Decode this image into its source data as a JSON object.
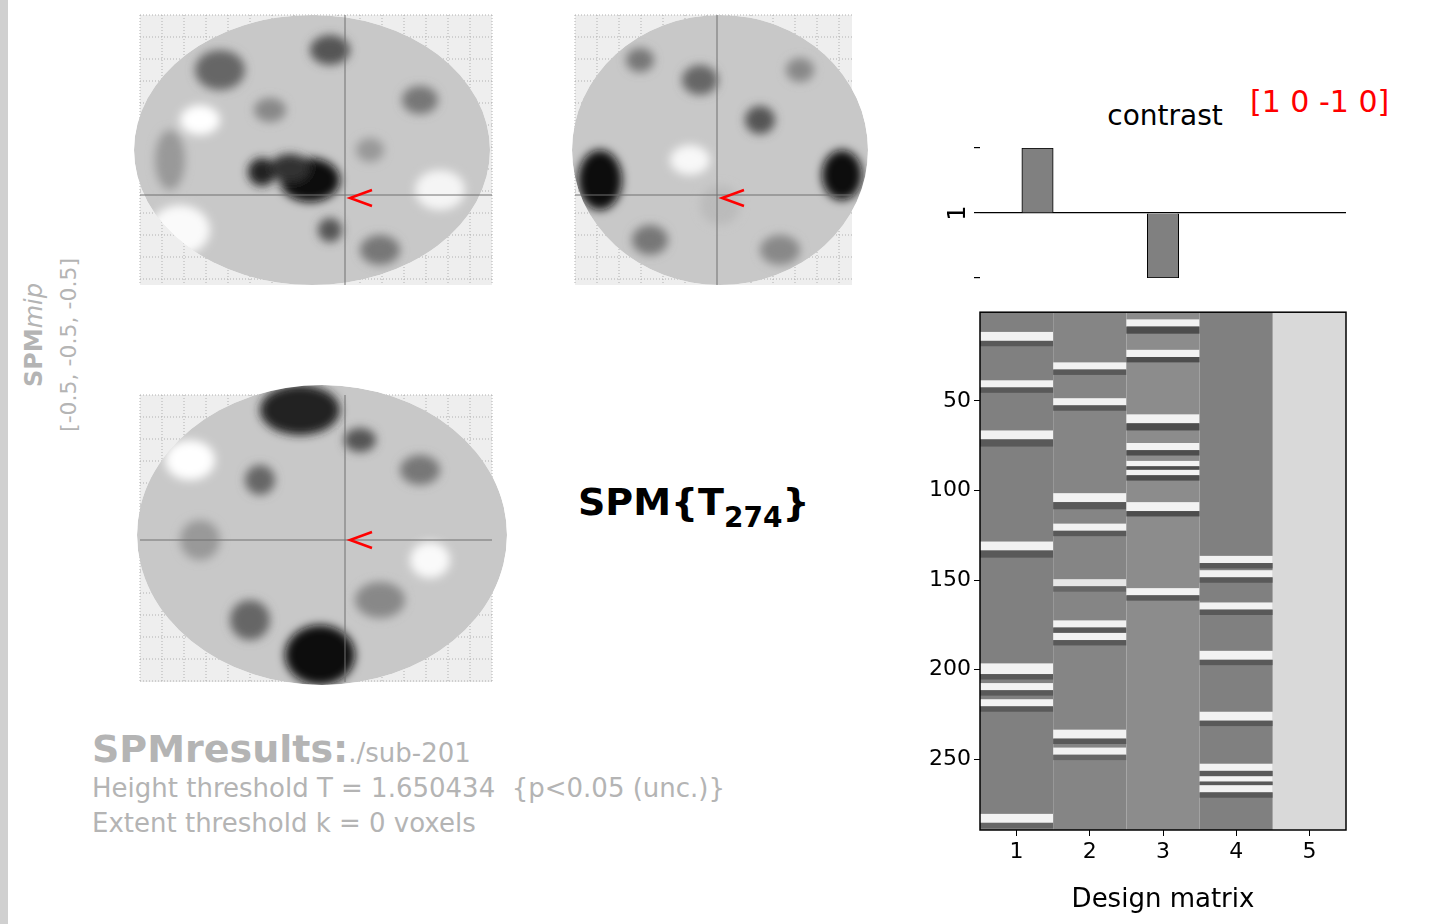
{
  "mip": {
    "label_bold": "SPM",
    "label_italic": "mip",
    "coordinates": "[-0.5, -0.5, -0.5]"
  },
  "stat_label": {
    "text": "SPM{T",
    "subscript": "274",
    "close": "}"
  },
  "results": {
    "title": "SPMresults:",
    "path": "./sub-201",
    "height_threshold": "Height threshold T = 1.650434  {p<0.05 (unc.)}",
    "extent_threshold": "Extent threshold k = 0 voxels"
  },
  "chart_data": [
    {
      "type": "bar",
      "title": "contrast",
      "annotation": "[1 0 -1 0]",
      "ylabel": "1",
      "x": [
        1,
        2,
        3,
        4,
        5
      ],
      "values": [
        1,
        0,
        -1,
        0,
        0
      ],
      "xlim": [
        0.5,
        5.5
      ],
      "ylim": [
        -1,
        1
      ],
      "yticks": [
        -1,
        0,
        1
      ],
      "tick_labels": false,
      "color": "#808080"
    },
    {
      "type": "heatmap",
      "xlabel": "Design matrix",
      "xlim": [
        0.5,
        5.5
      ],
      "xticks": [
        1,
        2,
        3,
        4,
        5
      ],
      "ylim": [
        0.5,
        289.5
      ],
      "yticks": [
        50,
        100,
        150,
        200,
        250
      ],
      "columns": [
        {
          "x": 1,
          "baseline": 0.5,
          "bands": [
            [
              12,
              16,
              0.95
            ],
            [
              17,
              19,
              0.35
            ],
            [
              39,
              42,
              0.95
            ],
            [
              43,
              45,
              0.35
            ],
            [
              67,
              71,
              0.95
            ],
            [
              72,
              75,
              0.35
            ],
            [
              129,
              133,
              0.95
            ],
            [
              134,
              137,
              0.35
            ],
            [
              197,
              202,
              0.95
            ],
            [
              203,
              205,
              0.35
            ],
            [
              208,
              211,
              0.95
            ],
            [
              212,
              214,
              0.35
            ],
            [
              217,
              220,
              0.95
            ],
            [
              221,
              223,
              0.35
            ],
            [
              281,
              285,
              0.95
            ],
            [
              286,
              288,
              0.4
            ]
          ]
        },
        {
          "x": 2,
          "baseline": 0.52,
          "bands": [
            [
              29,
              32,
              0.95
            ],
            [
              33,
              35,
              0.35
            ],
            [
              49,
              52,
              0.95
            ],
            [
              53,
              55,
              0.35
            ],
            [
              102,
              106,
              0.95
            ],
            [
              107,
              110,
              0.35
            ],
            [
              119,
              122,
              0.95
            ],
            [
              123,
              125,
              0.35
            ],
            [
              150,
              153,
              0.9
            ],
            [
              154,
              156,
              0.4
            ],
            [
              173,
              176,
              0.95
            ],
            [
              177,
              179,
              0.35
            ],
            [
              180,
              183,
              0.95
            ],
            [
              184,
              186,
              0.35
            ],
            [
              234,
              238,
              0.95
            ],
            [
              239,
              241,
              0.35
            ],
            [
              244,
              247,
              0.95
            ],
            [
              248,
              250,
              0.4
            ]
          ]
        },
        {
          "x": 3,
          "baseline": 0.55,
          "bands": [
            [
              5,
              8,
              0.95
            ],
            [
              9,
              12,
              0.3
            ],
            [
              22,
              25,
              0.95
            ],
            [
              26,
              28,
              0.3
            ],
            [
              58,
              62,
              0.95
            ],
            [
              63,
              66,
              0.3
            ],
            [
              74,
              77,
              0.95
            ],
            [
              78,
              80,
              0.3
            ],
            [
              84,
              86,
              0.95
            ],
            [
              87,
              88,
              0.3
            ],
            [
              89,
              91,
              0.95
            ],
            [
              92,
              94,
              0.3
            ],
            [
              107,
              111,
              0.95
            ],
            [
              112,
              114,
              0.3
            ],
            [
              155,
              158,
              0.95
            ],
            [
              159,
              161,
              0.35
            ]
          ]
        },
        {
          "x": 4,
          "baseline": 0.5,
          "bands": [
            [
              137,
              140,
              0.95
            ],
            [
              141,
              143,
              0.35
            ],
            [
              145,
              148,
              0.95
            ],
            [
              149,
              151,
              0.35
            ],
            [
              163,
              166,
              0.95
            ],
            [
              167,
              169,
              0.35
            ],
            [
              190,
              194,
              0.95
            ],
            [
              195,
              197,
              0.35
            ],
            [
              224,
              228,
              0.95
            ],
            [
              229,
              231,
              0.35
            ],
            [
              253,
              256,
              0.95
            ],
            [
              257,
              259,
              0.35
            ],
            [
              260,
              262,
              0.95
            ],
            [
              263,
              264,
              0.35
            ],
            [
              265,
              268,
              0.95
            ],
            [
              269,
              271,
              0.35
            ]
          ]
        },
        {
          "x": 5,
          "baseline": 0.85,
          "bands": []
        }
      ]
    }
  ]
}
